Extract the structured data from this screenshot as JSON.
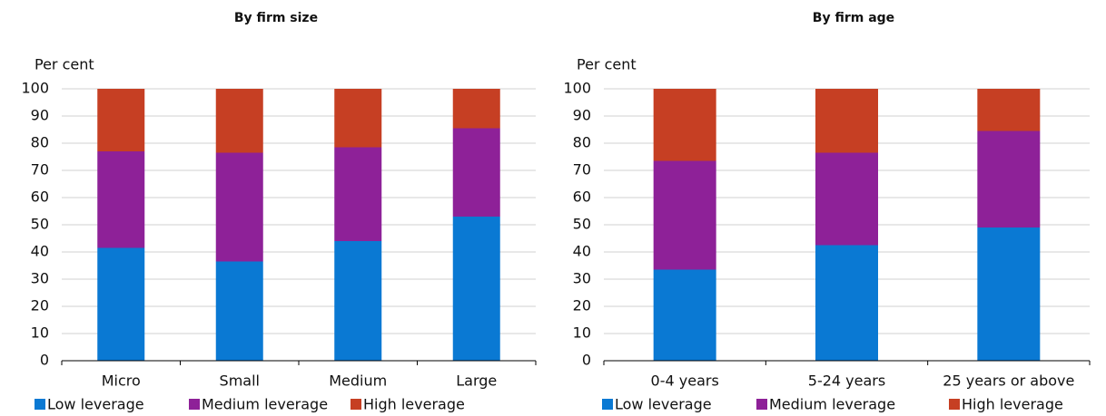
{
  "chart_data": [
    {
      "type": "stacked-bar",
      "title": "By firm size",
      "y_label": "Per cent",
      "categories": [
        "Micro",
        "Small",
        "Medium",
        "Large"
      ],
      "series": [
        {
          "name": "Low leverage",
          "color": "#0a79d3",
          "values": [
            41.5,
            36.5,
            44,
            53
          ]
        },
        {
          "name": "Medium leverage",
          "color": "#8e2198",
          "values": [
            35.5,
            40,
            34.5,
            32.5
          ]
        },
        {
          "name": "High leverage",
          "color": "#c63f23",
          "values": [
            23,
            23.5,
            21.5,
            14.5
          ]
        }
      ],
      "ylim": [
        0,
        100
      ],
      "yticks": [
        0,
        10,
        20,
        30,
        40,
        50,
        60,
        70,
        80,
        90,
        100
      ],
      "grid": true,
      "legend": "bottom"
    },
    {
      "type": "stacked-bar",
      "title": "By firm age",
      "y_label": "Per cent",
      "categories": [
        "0-4 years",
        "5-24 years",
        "25 years or above"
      ],
      "series": [
        {
          "name": "Low leverage",
          "color": "#0a79d3",
          "values": [
            33.5,
            42.5,
            49
          ]
        },
        {
          "name": "Medium leverage",
          "color": "#8e2198",
          "values": [
            40,
            34,
            35.5
          ]
        },
        {
          "name": "High leverage",
          "color": "#c63f23",
          "values": [
            26.5,
            23.5,
            15.5
          ]
        }
      ],
      "ylim": [
        0,
        100
      ],
      "yticks": [
        0,
        10,
        20,
        30,
        40,
        50,
        60,
        70,
        80,
        90,
        100
      ],
      "grid": true,
      "legend": "bottom"
    }
  ]
}
